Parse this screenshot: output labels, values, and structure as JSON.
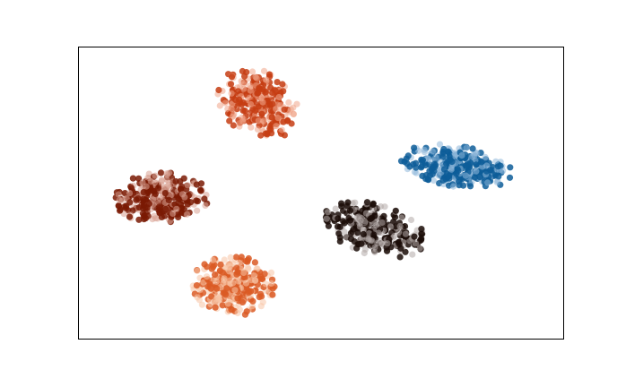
{
  "chart_data": {
    "type": "scatter",
    "title": "",
    "xlabel": "",
    "ylabel": "",
    "xlim": [
      -50,
      50
    ],
    "ylim": [
      -30,
      30
    ],
    "grid": false,
    "axes_ticks": false,
    "legend": "none",
    "point_alpha": 0.45,
    "series": [
      {
        "id": "cluster-blue",
        "color": "#0d5d99",
        "light_color": "#8fb8db",
        "center": [
          28,
          5.5
        ],
        "spread": [
          11,
          4.2
        ],
        "tilt_deg": -8,
        "count": 320
      },
      {
        "id": "cluster-orange-red",
        "color": "#c53d13",
        "light_color": "#f0a68a",
        "center": [
          -13,
          18.5
        ],
        "spread": [
          8.5,
          6.5
        ],
        "tilt_deg": -30,
        "count": 300
      },
      {
        "id": "cluster-dark-red",
        "color": "#7a1a04",
        "light_color": "#d9a294",
        "center": [
          -33,
          -1
        ],
        "spread": [
          10,
          5
        ],
        "tilt_deg": 0,
        "count": 300
      },
      {
        "id": "cluster-black",
        "color": "#1a0c07",
        "light_color": "#b3aaa7",
        "center": [
          11,
          -7.5
        ],
        "spread": [
          10.5,
          5
        ],
        "tilt_deg": -15,
        "count": 300
      },
      {
        "id": "cluster-light-orange",
        "color": "#db5a24",
        "light_color": "#f7c4a6",
        "center": [
          -18,
          -19
        ],
        "spread": [
          8.5,
          6
        ],
        "tilt_deg": 0,
        "count": 320
      }
    ]
  }
}
